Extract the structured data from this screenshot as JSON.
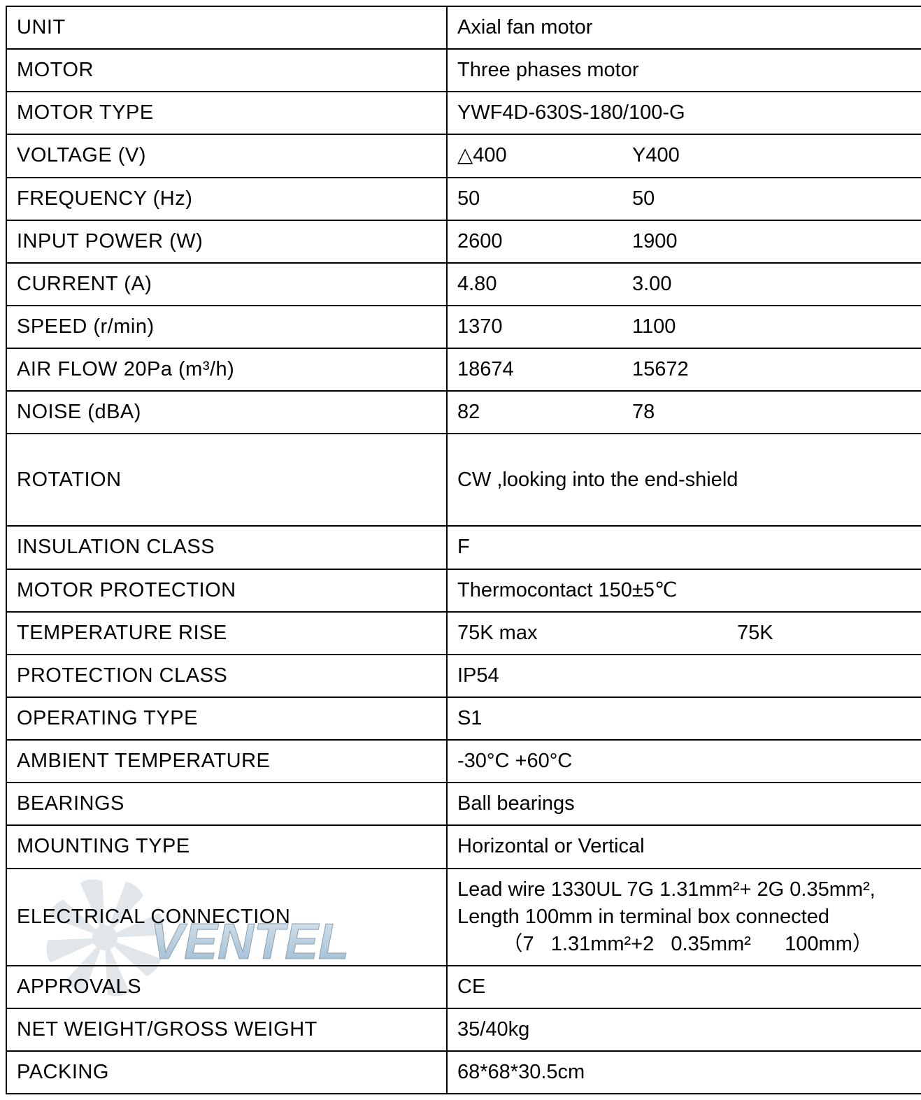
{
  "table": {
    "border_color": "#000000",
    "font_color": "#000000",
    "label_font_size": 29,
    "value_font_size": 29,
    "small_font_size": 24,
    "rows": [
      {
        "label": "UNIT",
        "value": "Axial fan motor"
      },
      {
        "label": "MOTOR",
        "value": "Three phases motor"
      },
      {
        "label": "MOTOR  TYPE",
        "value": "YWF4D-630S-180/100-G"
      },
      {
        "label": "VOLTAGE (V)",
        "value_a": "△400",
        "value_b": "Y400"
      },
      {
        "label": "FREQUENCY (Hz)",
        "value_a": "50",
        "value_b": "50"
      },
      {
        "label": "INPUT POWER (W)",
        "value_a": "2600",
        "value_b": "1900"
      },
      {
        "label": "CURRENT (A)",
        "value_a": "4.80",
        "value_b": "3.00"
      },
      {
        "label": "SPEED (r/min)",
        "value_a": "1370",
        "value_b": "1100"
      },
      {
        "label": "AIR FLOW 20Pa (m³/h)",
        "value_a": "18674",
        "value_b": "15672"
      },
      {
        "label": "NOISE  (dBA)",
        "value_a": "82",
        "value_b": "78"
      },
      {
        "label": "ROTATION",
        "value": "CW ,looking into the end-shield",
        "tall": true
      },
      {
        "label": "INSULATION  CLASS",
        "value": "F"
      },
      {
        "label": "MOTOR PROTECTION",
        "value": "Thermocontact   150±5℃"
      },
      {
        "label": "TEMPERATURE RISE",
        "value_a": "75K max",
        "value_b": "75K",
        "col_a_width": 400
      },
      {
        "label": "PROTECTION  CLASS",
        "value": "IP54"
      },
      {
        "label": "OPERATING TYPE",
        "value": "S1"
      },
      {
        "label": "AMBIENT TEMPERATURE",
        "value": "-30°C  +60°C"
      },
      {
        "label": "BEARINGS",
        "value": "Ball bearings"
      },
      {
        "label": "MOUNTING TYPE",
        "value": "Horizontal or Vertical"
      },
      {
        "label": "ELECTRICAL  CONNECTION",
        "value_lines": [
          "Lead wire 1330UL 7G 1.31mm²+ 2G 0.35mm²,",
          "Length 100mm in terminal box connected",
          "        （7   1.31mm²+2   0.35mm²      100mm）"
        ],
        "small": true
      },
      {
        "label": "APPROVALS",
        "value": "CE"
      },
      {
        "label": "NET WEIGHT/GROSS WEIGHT",
        "value": "35/40kg"
      },
      {
        "label": "PACKING",
        "value": "68*68*30.5cm"
      }
    ]
  },
  "watermark": {
    "text": "VENTEL",
    "fan_color": "#c9d3da",
    "text_gradient_top": "#9ab6cc",
    "text_gradient_bottom": "#5e90b8",
    "outline": "#2c546f"
  }
}
